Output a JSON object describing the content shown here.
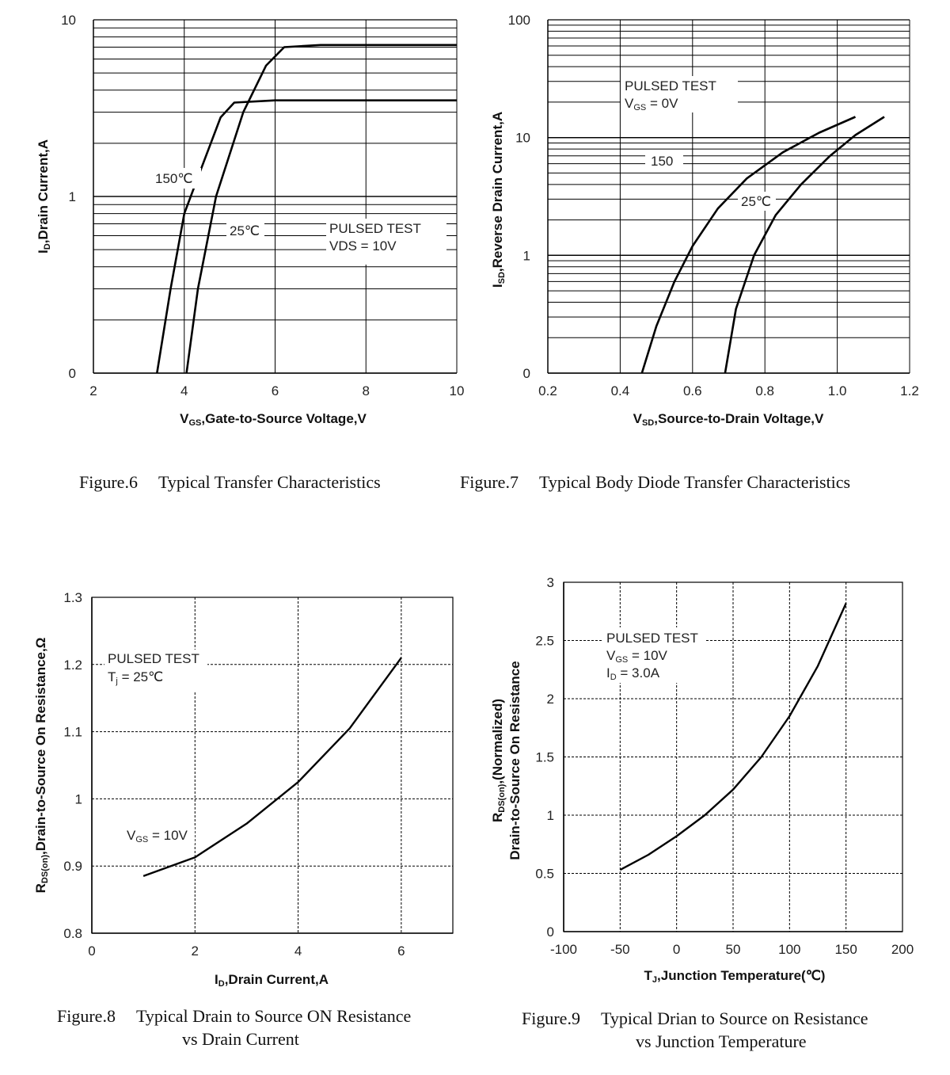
{
  "chart_data": [
    {
      "id": "fig6",
      "type": "line",
      "caption": {
        "number": "Figure.6",
        "title": "Typical Transfer Characteristics"
      },
      "xlabel": {
        "main": "V",
        "sub": "GS",
        "rest": ",Gate-to-Source Voltage,V"
      },
      "ylabel": {
        "main": "I",
        "sub": "D",
        "rest": ",Drain Current,A"
      },
      "xlim": [
        2,
        10
      ],
      "x_ticks": [
        "2",
        "4",
        "6",
        "8",
        "10"
      ],
      "y_scale": "log",
      "y_tick_labels": [
        "0",
        "1",
        "10"
      ],
      "annotation": [
        "PULSED TEST",
        "VDS = 10V"
      ],
      "series": [
        {
          "name": "150℃",
          "points": [
            [
              3.4,
              0.1
            ],
            [
              3.7,
              0.3
            ],
            [
              4.0,
              0.8
            ],
            [
              4.4,
              1.5
            ],
            [
              4.8,
              2.8
            ],
            [
              5.1,
              3.4
            ],
            [
              6.0,
              3.5
            ],
            [
              8.0,
              3.5
            ],
            [
              10.0,
              3.5
            ]
          ]
        },
        {
          "name": "25℃",
          "points": [
            [
              4.05,
              0.1
            ],
            [
              4.3,
              0.3
            ],
            [
              4.7,
              1.0
            ],
            [
              5.3,
              3.0
            ],
            [
              5.8,
              5.5
            ],
            [
              6.2,
              7.0
            ],
            [
              7.0,
              7.2
            ],
            [
              10.0,
              7.2
            ]
          ]
        }
      ]
    },
    {
      "id": "fig7",
      "type": "line",
      "caption": {
        "number": "Figure.7",
        "title": "Typical Body Diode Transfer Characteristics"
      },
      "xlabel": {
        "main": "V",
        "sub": "SD",
        "rest": ",Source-to-Drain Voltage,V"
      },
      "ylabel": {
        "main": "I",
        "sub": "SD",
        "rest": ",Reverse Drain Current,A"
      },
      "xlim": [
        0.2,
        1.2
      ],
      "x_ticks": [
        "0.2",
        "0.4",
        "0.6",
        "0.8",
        "1.0",
        "1.2"
      ],
      "y_scale": "log",
      "y_tick_labels": [
        "0",
        "1",
        "10",
        "100"
      ],
      "annotation": [
        "PULSED TEST",
        "V",
        "GS",
        " = 0V"
      ],
      "series": [
        {
          "name": "150",
          "points": [
            [
              0.46,
              0.1
            ],
            [
              0.5,
              0.25
            ],
            [
              0.55,
              0.6
            ],
            [
              0.6,
              1.2
            ],
            [
              0.67,
              2.5
            ],
            [
              0.75,
              4.5
            ],
            [
              0.85,
              7.5
            ],
            [
              0.95,
              11.0
            ],
            [
              1.05,
              15.0
            ]
          ]
        },
        {
          "name": "25℃",
          "points": [
            [
              0.69,
              0.1
            ],
            [
              0.72,
              0.35
            ],
            [
              0.77,
              1.0
            ],
            [
              0.83,
              2.2
            ],
            [
              0.9,
              4.0
            ],
            [
              0.98,
              7.0
            ],
            [
              1.05,
              10.5
            ],
            [
              1.13,
              15.0
            ]
          ]
        }
      ]
    },
    {
      "id": "fig8",
      "type": "line",
      "caption": {
        "number": "Figure.8",
        "title": "Typical Drain to Source ON Resistance",
        "title2": "vs Drain Current"
      },
      "xlabel": {
        "main": "I",
        "sub": "D",
        "rest": ",Drain Current,A"
      },
      "ylabel": {
        "main": "R",
        "sub": "DS(on)",
        "rest": ",Drain-to-Source On Resistance,Ω"
      },
      "xlim": [
        0,
        7
      ],
      "x_ticks": [
        {
          "v": 0,
          "l": "0"
        },
        {
          "v": 2,
          "l": "2"
        },
        {
          "v": 4,
          "l": "4"
        },
        {
          "v": 6,
          "l": "6"
        }
      ],
      "ylim": [
        0.8,
        1.3
      ],
      "y_ticks": [
        {
          "v": 0.8,
          "l": "0.8"
        },
        {
          "v": 0.9,
          "l": "0.9"
        },
        {
          "v": 1.0,
          "l": "1"
        },
        {
          "v": 1.1,
          "l": "1.1"
        },
        {
          "v": 1.2,
          "l": "1.2"
        },
        {
          "v": 1.3,
          "l": "1.3"
        }
      ],
      "annotation": [
        "PULSED TEST",
        "T",
        "j",
        " = 25℃"
      ],
      "series_label": {
        "main": "V",
        "sub": "GS",
        "rest": " = 10V"
      },
      "series": [
        {
          "name": "",
          "points": [
            [
              1.0,
              0.885
            ],
            [
              2.0,
              0.913
            ],
            [
              3.0,
              0.963
            ],
            [
              4.0,
              1.025
            ],
            [
              5.0,
              1.105
            ],
            [
              6.0,
              1.21
            ]
          ]
        }
      ]
    },
    {
      "id": "fig9",
      "type": "line",
      "caption": {
        "number": "Figure.9",
        "title": "Typical Drian to Source on Resistance",
        "title2": "vs Junction Temperature"
      },
      "xlabel": {
        "main": "T",
        "sub": "J",
        "rest": ",Junction Temperature(℃)"
      },
      "ylabel": {
        "main": "R",
        "sub": "DS(on)",
        "rest": ",(Normalized)",
        "line2": "Drain-to-Source On Resistance"
      },
      "xlim": [
        -100,
        200
      ],
      "x_ticks": [
        {
          "v": -100,
          "l": "-100"
        },
        {
          "v": -50,
          "l": "-50"
        },
        {
          "v": 0,
          "l": "0"
        },
        {
          "v": 50,
          "l": "50"
        },
        {
          "v": 100,
          "l": "100"
        },
        {
          "v": 150,
          "l": "150"
        },
        {
          "v": 200,
          "l": "200"
        }
      ],
      "ylim": [
        0,
        3
      ],
      "y_ticks": [
        {
          "v": 0,
          "l": "0"
        },
        {
          "v": 0.5,
          "l": "0.5"
        },
        {
          "v": 1,
          "l": "1"
        },
        {
          "v": 1.5,
          "l": "1.5"
        },
        {
          "v": 2,
          "l": "2"
        },
        {
          "v": 2.5,
          "l": "2.5"
        },
        {
          "v": 3,
          "l": "3"
        }
      ],
      "annotation": [
        "PULSED TEST",
        "V",
        "GS",
        " = 10V",
        "I",
        "D",
        " = 3.0A"
      ],
      "series": [
        {
          "name": "",
          "points": [
            [
              -50,
              0.53
            ],
            [
              -25,
              0.66
            ],
            [
              0,
              0.82
            ],
            [
              25,
              1.0
            ],
            [
              50,
              1.22
            ],
            [
              75,
              1.5
            ],
            [
              100,
              1.85
            ],
            [
              125,
              2.28
            ],
            [
              150,
              2.82
            ]
          ]
        }
      ]
    }
  ]
}
